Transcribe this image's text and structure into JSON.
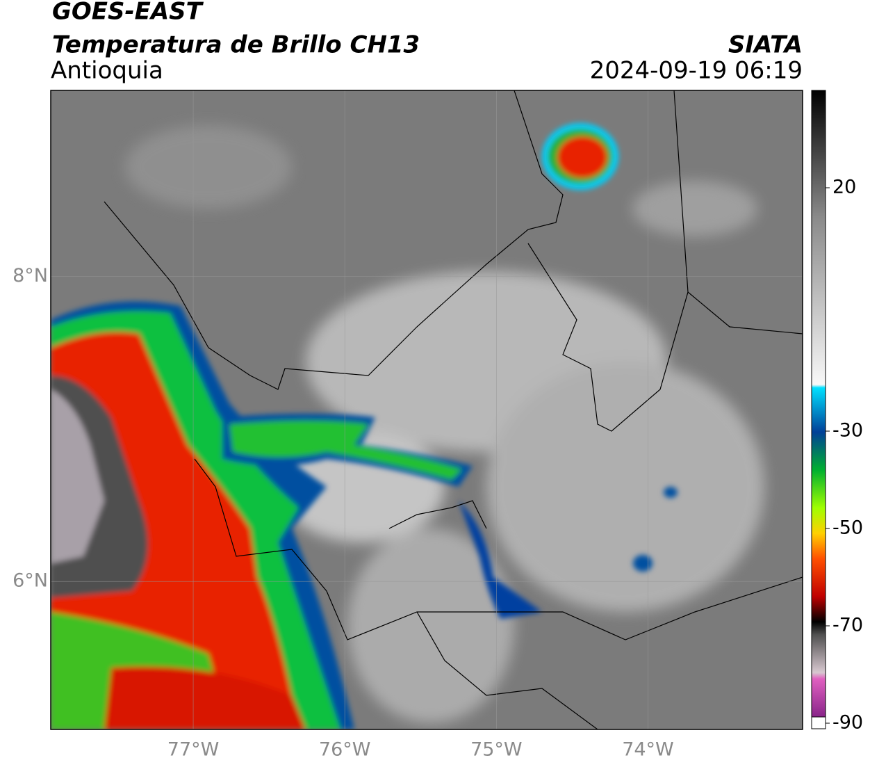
{
  "header": {
    "satellite": "GOES-EAST",
    "product": "Temperatura de Brillo CH13",
    "region": "Antioquia",
    "source": "SIATA",
    "datetime": "2024-09-19 06:19"
  },
  "map": {
    "xlim": [
      -77.94,
      -72.98
    ],
    "ylim": [
      5.03,
      9.22
    ],
    "xticks": [
      {
        "value": -77,
        "label": "77°W"
      },
      {
        "value": -76,
        "label": "76°W"
      },
      {
        "value": -75,
        "label": "75°W"
      },
      {
        "value": -74,
        "label": "74°W"
      }
    ],
    "yticks": [
      {
        "value": 6,
        "label": "6°N"
      },
      {
        "value": 8,
        "label": "8°N"
      }
    ]
  },
  "colorbar": {
    "lim": [
      -90,
      40
    ],
    "ticks": [
      20,
      -30,
      -50,
      -70,
      -90
    ]
  }
}
